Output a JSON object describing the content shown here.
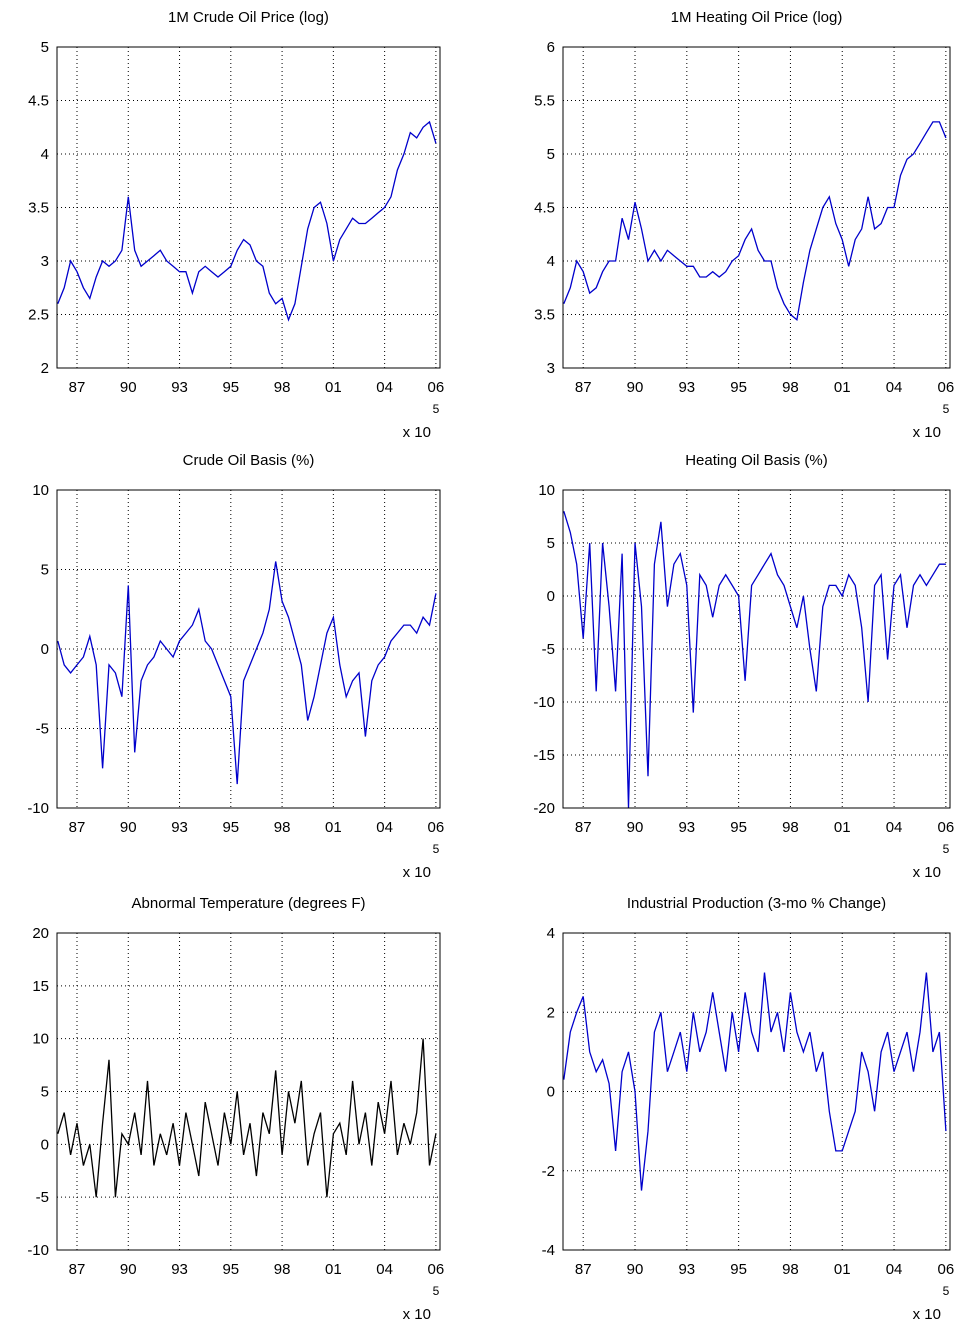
{
  "chart_data": [
    {
      "type": "line",
      "title": "1M Crude Oil Price (log)",
      "color": "#0000cc",
      "grid": true,
      "x": [
        725625,
        725750,
        725875,
        726000,
        726125,
        726250,
        726375,
        726500,
        726625,
        726750,
        726875,
        727000,
        727125,
        727250,
        727375,
        727500,
        727625,
        727750,
        727875,
        728000,
        728125,
        728250,
        728375,
        728500,
        728625,
        728750,
        728875,
        729000,
        729125,
        729250,
        729375,
        729500,
        729625,
        729750,
        729875,
        730000,
        730125,
        730250,
        730375,
        730500,
        730625,
        730750,
        730875,
        731000,
        731125,
        731250,
        731375,
        731500,
        731625,
        731750,
        731875,
        732000,
        732125,
        732250,
        732375,
        732500,
        732625,
        732750,
        732875,
        733000
      ],
      "values": [
        2.6,
        2.75,
        3.0,
        2.9,
        2.75,
        2.65,
        2.85,
        3.0,
        2.95,
        3.0,
        3.1,
        3.6,
        3.1,
        2.95,
        3.0,
        3.05,
        3.1,
        3.0,
        2.95,
        2.9,
        2.9,
        2.7,
        2.9,
        2.95,
        2.9,
        2.85,
        2.9,
        2.95,
        3.1,
        3.2,
        3.15,
        3.0,
        2.95,
        2.7,
        2.6,
        2.65,
        2.45,
        2.6,
        2.95,
        3.3,
        3.5,
        3.55,
        3.35,
        3.0,
        3.2,
        3.3,
        3.4,
        3.35,
        3.35,
        3.4,
        3.45,
        3.5,
        3.6,
        3.85,
        4.0,
        4.2,
        4.15,
        4.25,
        4.3,
        4.1
      ],
      "xlim": [
        725610,
        733080
      ],
      "xticks": [
        {
          "value": 726000,
          "label": "87"
        },
        {
          "value": 727000,
          "label": "90"
        },
        {
          "value": 728000,
          "label": "93"
        },
        {
          "value": 729000,
          "label": "95"
        },
        {
          "value": 730000,
          "label": "98"
        },
        {
          "value": 731000,
          "label": "01"
        },
        {
          "value": 732000,
          "label": "04"
        },
        {
          "value": 733000,
          "label": "06"
        }
      ],
      "x_multiplier": "x 10",
      "x_exponent": 5,
      "ylim": [
        2,
        5
      ],
      "yticks": [
        2,
        2.5,
        3,
        3.5,
        4,
        4.5,
        5
      ]
    },
    {
      "type": "line",
      "title": "1M Heating Oil Price (log)",
      "color": "#0000cc",
      "grid": true,
      "x": [
        725625,
        725750,
        725875,
        726000,
        726125,
        726250,
        726375,
        726500,
        726625,
        726750,
        726875,
        727000,
        727125,
        727250,
        727375,
        727500,
        727625,
        727750,
        727875,
        728000,
        728125,
        728250,
        728375,
        728500,
        728625,
        728750,
        728875,
        729000,
        729125,
        729250,
        729375,
        729500,
        729625,
        729750,
        729875,
        730000,
        730125,
        730250,
        730375,
        730500,
        730625,
        730750,
        730875,
        731000,
        731125,
        731250,
        731375,
        731500,
        731625,
        731750,
        731875,
        732000,
        732125,
        732250,
        732375,
        732500,
        732625,
        732750,
        732875,
        733000
      ],
      "values": [
        3.6,
        3.75,
        4.0,
        3.9,
        3.7,
        3.75,
        3.9,
        4.0,
        4.0,
        4.4,
        4.2,
        4.55,
        4.3,
        4.0,
        4.1,
        4.0,
        4.1,
        4.05,
        4.0,
        3.95,
        3.95,
        3.85,
        3.85,
        3.9,
        3.85,
        3.9,
        4.0,
        4.05,
        4.2,
        4.3,
        4.1,
        4.0,
        4.0,
        3.75,
        3.6,
        3.5,
        3.45,
        3.8,
        4.1,
        4.3,
        4.5,
        4.6,
        4.35,
        4.2,
        3.95,
        4.2,
        4.3,
        4.6,
        4.3,
        4.35,
        4.5,
        4.5,
        4.8,
        4.95,
        5.0,
        5.1,
        5.2,
        5.3,
        5.3,
        5.15
      ],
      "xlim": [
        725610,
        733080
      ],
      "xticks": [
        {
          "value": 726000,
          "label": "87"
        },
        {
          "value": 727000,
          "label": "90"
        },
        {
          "value": 728000,
          "label": "93"
        },
        {
          "value": 729000,
          "label": "95"
        },
        {
          "value": 730000,
          "label": "98"
        },
        {
          "value": 731000,
          "label": "01"
        },
        {
          "value": 732000,
          "label": "04"
        },
        {
          "value": 733000,
          "label": "06"
        }
      ],
      "x_multiplier": "x 10",
      "x_exponent": 5,
      "ylim": [
        3,
        6
      ],
      "yticks": [
        3,
        3.5,
        4,
        4.5,
        5,
        5.5,
        6
      ]
    },
    {
      "type": "line",
      "title": "Crude Oil Basis (%)",
      "color": "#0000cc",
      "grid": true,
      "x": [
        725625,
        725750,
        725875,
        726000,
        726125,
        726250,
        726375,
        726500,
        726625,
        726750,
        726875,
        727000,
        727125,
        727250,
        727375,
        727500,
        727625,
        727750,
        727875,
        728000,
        728125,
        728250,
        728375,
        728500,
        728625,
        728750,
        728875,
        729000,
        729125,
        729250,
        729375,
        729500,
        729625,
        729750,
        729875,
        730000,
        730125,
        730250,
        730375,
        730500,
        730625,
        730750,
        730875,
        731000,
        731125,
        731250,
        731375,
        731500,
        731625,
        731750,
        731875,
        732000,
        732125,
        732250,
        732375,
        732500,
        732625,
        732750,
        732875,
        733000
      ],
      "values": [
        0.5,
        -1,
        -1.5,
        -1,
        -0.5,
        0.8,
        -1,
        -7.5,
        -1,
        -1.5,
        -3,
        4,
        -6.5,
        -2,
        -1,
        -0.5,
        0.5,
        0,
        -0.5,
        0.5,
        1,
        1.5,
        2.5,
        0.5,
        0,
        -1,
        -2,
        -3,
        -8.5,
        -2,
        -1,
        0,
        1,
        2.5,
        5.5,
        3,
        2,
        0.5,
        -1,
        -4.5,
        -3,
        -1,
        1,
        2,
        -1,
        -3,
        -2,
        -1.5,
        -5.5,
        -2,
        -1,
        -0.5,
        0.5,
        1,
        1.5,
        1.5,
        1,
        2,
        1.5,
        3.5
      ],
      "xlim": [
        725610,
        733080
      ],
      "xticks": [
        {
          "value": 726000,
          "label": "87"
        },
        {
          "value": 727000,
          "label": "90"
        },
        {
          "value": 728000,
          "label": "93"
        },
        {
          "value": 729000,
          "label": "95"
        },
        {
          "value": 730000,
          "label": "98"
        },
        {
          "value": 731000,
          "label": "01"
        },
        {
          "value": 732000,
          "label": "04"
        },
        {
          "value": 733000,
          "label": "06"
        }
      ],
      "x_multiplier": "x 10",
      "x_exponent": 5,
      "ylim": [
        -10,
        10
      ],
      "yticks": [
        -10,
        -5,
        0,
        5,
        10
      ]
    },
    {
      "type": "line",
      "title": "Heating Oil Basis (%)",
      "color": "#0000cc",
      "grid": true,
      "x": [
        725625,
        725750,
        725875,
        726000,
        726125,
        726250,
        726375,
        726500,
        726625,
        726750,
        726875,
        727000,
        727125,
        727250,
        727375,
        727500,
        727625,
        727750,
        727875,
        728000,
        728125,
        728250,
        728375,
        728500,
        728625,
        728750,
        728875,
        729000,
        729125,
        729250,
        729375,
        729500,
        729625,
        729750,
        729875,
        730000,
        730125,
        730250,
        730375,
        730500,
        730625,
        730750,
        730875,
        731000,
        731125,
        731250,
        731375,
        731500,
        731625,
        731750,
        731875,
        732000,
        732125,
        732250,
        732375,
        732500,
        732625,
        732750,
        732875,
        733000
      ],
      "values": [
        8,
        6,
        3,
        -4,
        5,
        -9,
        5,
        -1,
        -9,
        4,
        -20,
        5,
        -1,
        -17,
        3,
        7,
        -1,
        3,
        4,
        1,
        -11,
        2,
        1,
        -2,
        1,
        2,
        1,
        0,
        -8,
        1,
        2,
        3,
        4,
        2,
        1,
        -1,
        -3,
        0,
        -5,
        -9,
        -1,
        1,
        1,
        0,
        2,
        1,
        -3,
        -10,
        1,
        2,
        -6,
        1,
        2,
        -3,
        1,
        2,
        1,
        2,
        3,
        3
      ],
      "xlim": [
        725610,
        733080
      ],
      "xticks": [
        {
          "value": 726000,
          "label": "87"
        },
        {
          "value": 727000,
          "label": "90"
        },
        {
          "value": 728000,
          "label": "93"
        },
        {
          "value": 729000,
          "label": "95"
        },
        {
          "value": 730000,
          "label": "98"
        },
        {
          "value": 731000,
          "label": "01"
        },
        {
          "value": 732000,
          "label": "04"
        },
        {
          "value": 733000,
          "label": "06"
        }
      ],
      "x_multiplier": "x 10",
      "x_exponent": 5,
      "ylim": [
        -20,
        10
      ],
      "yticks": [
        -20,
        -15,
        -10,
        -5,
        0,
        5,
        10
      ]
    },
    {
      "type": "line",
      "title": "Abnormal Temperature (degrees F)",
      "color": "#000000",
      "grid": true,
      "x": [
        725625,
        725750,
        725875,
        726000,
        726125,
        726250,
        726375,
        726500,
        726625,
        726750,
        726875,
        727000,
        727125,
        727250,
        727375,
        727500,
        727625,
        727750,
        727875,
        728000,
        728125,
        728250,
        728375,
        728500,
        728625,
        728750,
        728875,
        729000,
        729125,
        729250,
        729375,
        729500,
        729625,
        729750,
        729875,
        730000,
        730125,
        730250,
        730375,
        730500,
        730625,
        730750,
        730875,
        731000,
        731125,
        731250,
        731375,
        731500,
        731625,
        731750,
        731875,
        732000,
        732125,
        732250,
        732375,
        732500,
        732625,
        732750,
        732875,
        733000
      ],
      "values": [
        1,
        3,
        -1,
        2,
        -2,
        0,
        -5,
        2,
        8,
        -5,
        1,
        0,
        3,
        -1,
        6,
        -2,
        1,
        -1,
        2,
        -2,
        3,
        0,
        -3,
        4,
        1,
        -2,
        3,
        0,
        5,
        -1,
        2,
        -3,
        3,
        1,
        7,
        -1,
        5,
        2,
        6,
        -2,
        1,
        3,
        -5,
        1,
        2,
        -1,
        6,
        0,
        3,
        -2,
        4,
        1,
        6,
        -1,
        2,
        0,
        3,
        10,
        -2,
        1
      ],
      "xlim": [
        725610,
        733080
      ],
      "xticks": [
        {
          "value": 726000,
          "label": "87"
        },
        {
          "value": 727000,
          "label": "90"
        },
        {
          "value": 728000,
          "label": "93"
        },
        {
          "value": 729000,
          "label": "95"
        },
        {
          "value": 730000,
          "label": "98"
        },
        {
          "value": 731000,
          "label": "01"
        },
        {
          "value": 732000,
          "label": "04"
        },
        {
          "value": 733000,
          "label": "06"
        }
      ],
      "x_multiplier": "x 10",
      "x_exponent": 5,
      "ylim": [
        -10,
        20
      ],
      "yticks": [
        -10,
        -5,
        0,
        5,
        10,
        15,
        20
      ]
    },
    {
      "type": "line",
      "title": "Industrial Production (3-mo % Change)",
      "color": "#0000cc",
      "grid": true,
      "x": [
        725625,
        725750,
        725875,
        726000,
        726125,
        726250,
        726375,
        726500,
        726625,
        726750,
        726875,
        727000,
        727125,
        727250,
        727375,
        727500,
        727625,
        727750,
        727875,
        728000,
        728125,
        728250,
        728375,
        728500,
        728625,
        728750,
        728875,
        729000,
        729125,
        729250,
        729375,
        729500,
        729625,
        729750,
        729875,
        730000,
        730125,
        730250,
        730375,
        730500,
        730625,
        730750,
        730875,
        731000,
        731125,
        731250,
        731375,
        731500,
        731625,
        731750,
        731875,
        732000,
        732125,
        732250,
        732375,
        732500,
        732625,
        732750,
        732875,
        733000
      ],
      "values": [
        0.3,
        1.5,
        2,
        2.4,
        1,
        0.5,
        0.8,
        0.2,
        -1.5,
        0.5,
        1,
        0,
        -2.5,
        -1,
        1.5,
        2,
        0.5,
        1,
        1.5,
        0.5,
        2,
        1,
        1.5,
        2.5,
        1.5,
        0.5,
        2,
        1,
        2.5,
        1.5,
        1,
        3,
        1.5,
        2,
        1,
        2.5,
        1.5,
        1,
        1.5,
        0.5,
        1,
        -0.5,
        -1.5,
        -1.5,
        -1,
        -0.5,
        1,
        0.5,
        -0.5,
        1,
        1.5,
        0.5,
        1,
        1.5,
        0.5,
        1.5,
        3,
        1,
        1.5,
        -1
      ],
      "xlim": [
        725610,
        733080
      ],
      "xticks": [
        {
          "value": 726000,
          "label": "87"
        },
        {
          "value": 727000,
          "label": "90"
        },
        {
          "value": 728000,
          "label": "93"
        },
        {
          "value": 729000,
          "label": "95"
        },
        {
          "value": 730000,
          "label": "98"
        },
        {
          "value": 731000,
          "label": "01"
        },
        {
          "value": 732000,
          "label": "04"
        },
        {
          "value": 733000,
          "label": "06"
        }
      ],
      "x_multiplier": "x 10",
      "x_exponent": 5,
      "ylim": [
        -4,
        4
      ],
      "yticks": [
        -4,
        -2,
        0,
        2,
        4
      ]
    }
  ]
}
